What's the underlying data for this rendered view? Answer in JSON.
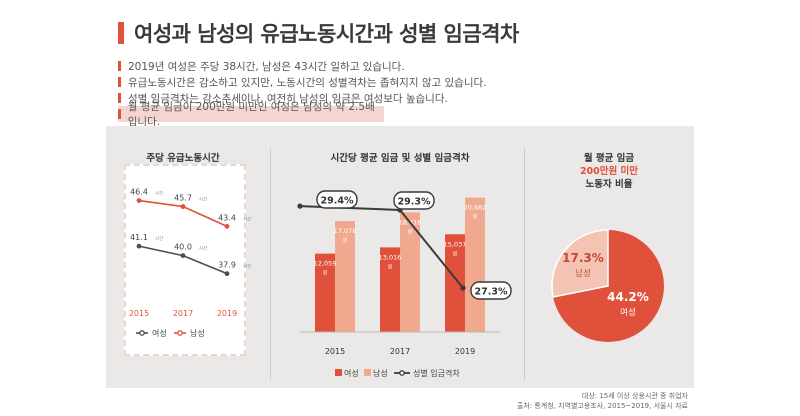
{
  "title": "여성과 남성의 유급노동시간과 성별 임금격차",
  "bullets": [
    "2019년 여성은 주당 38시간, 남성은 43시간 일하고 있습니다.",
    "유급노동시간은 감소하고 있지만, 노동시간의 성별격차는 좁혀지지 않고 있습니다.",
    "성별 임금격차는 감소추세이나, 여전히 남성의 임금은 여성보다 높습니다.",
    "월 평균 임금이 200만원 미만인 여성은 남성의 약 2.5배입니다."
  ],
  "colors": {
    "accent": "#e0513b",
    "female": "#e0513b",
    "male": "#f0a98f",
    "gap": "#3a3a3a",
    "female_line": "#5a4a42",
    "male_line": "#e0513b"
  },
  "footnote": {
    "line1": "대상: 15세 이상 상용시관 중 취업자",
    "line2": "출처: 통계청, 지역별고용조사, 2015~2019, 서울시 자료"
  },
  "chart_data": [
    {
      "type": "line",
      "title": "주당 유급노동시간",
      "categories": [
        "2015",
        "2017",
        "2019"
      ],
      "unit": "시간",
      "series": [
        {
          "name": "남성",
          "values": [
            46.4,
            45.7,
            43.4
          ]
        },
        {
          "name": "여성",
          "values": [
            41.1,
            40.0,
            37.9
          ]
        }
      ],
      "legend": [
        "여성",
        "남성"
      ],
      "legend_position": "bottom"
    },
    {
      "type": "bar",
      "title": "시간당 평균 임금 및 성별 임금격차",
      "categories": [
        "2015",
        "2017",
        "2019"
      ],
      "unit": "원",
      "series": [
        {
          "name": "여성",
          "values": [
            12059,
            13016,
            15037
          ]
        },
        {
          "name": "남성",
          "values": [
            17076,
            18416,
            20682
          ]
        },
        {
          "name": "성별 임금격차",
          "type": "line",
          "values": [
            29.4,
            29.3,
            27.3
          ],
          "labels": [
            "29.4%",
            "29.3%",
            "27.3%"
          ]
        }
      ],
      "bar_labels": {
        "female": [
          "12,059",
          "13,016",
          "15,037"
        ],
        "male": [
          "17,076",
          "18,416",
          "20,682"
        ]
      },
      "legend_position": "bottom"
    },
    {
      "type": "pie",
      "title_lines": [
        "월 평균 임금",
        "200만원 미만",
        "노동자 비율"
      ],
      "slices": [
        {
          "name": "여성",
          "value": 44.2,
          "label": "44.2%"
        },
        {
          "name": "남성",
          "value": 17.3,
          "label": "17.3%"
        }
      ]
    }
  ]
}
